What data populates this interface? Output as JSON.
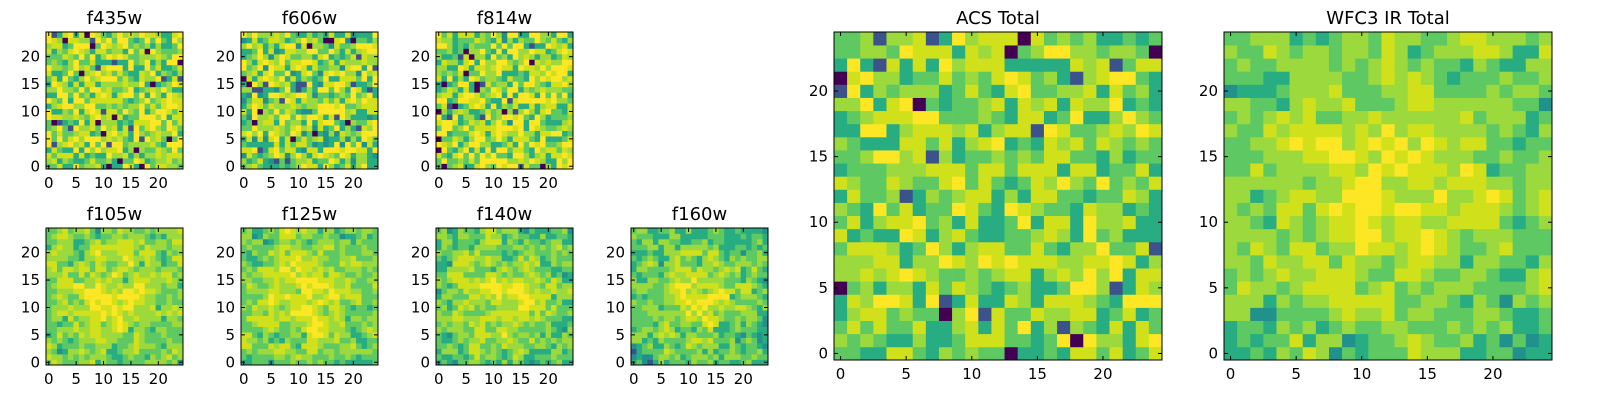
{
  "figure": {
    "palette": [
      "#440154",
      "#3b528b",
      "#21918c",
      "#27ad81",
      "#5ec962",
      "#9bd93c",
      "#d0e11c",
      "#fde725"
    ]
  },
  "chart_data": [
    {
      "type": "heatmap",
      "title": "f435w",
      "size": 25,
      "xticks": [
        0,
        5,
        10,
        15,
        20
      ],
      "yticks": [
        0,
        5,
        10,
        15,
        20
      ],
      "seed": 11,
      "smooth": 0,
      "center": 0.0,
      "bias": 0.7,
      "spread": 0.32
    },
    {
      "type": "heatmap",
      "title": "f606w",
      "size": 25,
      "xticks": [
        0,
        5,
        10,
        15,
        20
      ],
      "yticks": [
        0,
        5,
        10,
        15,
        20
      ],
      "seed": 23,
      "smooth": 0,
      "center": 0.0,
      "bias": 0.68,
      "spread": 0.34
    },
    {
      "type": "heatmap",
      "title": "f814w",
      "size": 25,
      "xticks": [
        0,
        5,
        10,
        15,
        20
      ],
      "yticks": [
        0,
        5,
        10,
        15,
        20
      ],
      "seed": 37,
      "smooth": 0,
      "center": 0.0,
      "bias": 0.7,
      "spread": 0.33
    },
    {
      "type": "heatmap",
      "title": "f105w",
      "size": 25,
      "xticks": [
        0,
        5,
        10,
        15,
        20
      ],
      "yticks": [
        0,
        5,
        10,
        15,
        20
      ],
      "seed": 41,
      "smooth": 1,
      "center": 0.25,
      "bias": 0.62,
      "spread": 0.3
    },
    {
      "type": "heatmap",
      "title": "f125w",
      "size": 25,
      "xticks": [
        0,
        5,
        10,
        15,
        20
      ],
      "yticks": [
        0,
        5,
        10,
        15,
        20
      ],
      "seed": 53,
      "smooth": 1,
      "center": 0.25,
      "bias": 0.62,
      "spread": 0.3
    },
    {
      "type": "heatmap",
      "title": "f140w",
      "size": 25,
      "xticks": [
        0,
        5,
        10,
        15,
        20
      ],
      "yticks": [
        0,
        5,
        10,
        15,
        20
      ],
      "seed": 67,
      "smooth": 1,
      "center": 0.25,
      "bias": 0.6,
      "spread": 0.3
    },
    {
      "type": "heatmap",
      "title": "f160w",
      "size": 25,
      "xticks": [
        0,
        5,
        10,
        15,
        20
      ],
      "yticks": [
        0,
        5,
        10,
        15,
        20
      ],
      "seed": 79,
      "smooth": 1,
      "center": 0.25,
      "bias": 0.55,
      "spread": 0.32
    },
    {
      "type": "heatmap",
      "title": "ACS Total",
      "size": 25,
      "xticks": [
        0,
        5,
        10,
        15,
        20
      ],
      "yticks": [
        0,
        5,
        10,
        15,
        20
      ],
      "seed": 97,
      "smooth": 0,
      "center": 0.05,
      "bias": 0.66,
      "spread": 0.26
    },
    {
      "type": "heatmap",
      "title": "WFC3 IR Total",
      "size": 25,
      "xticks": [
        0,
        5,
        10,
        15,
        20
      ],
      "yticks": [
        0,
        5,
        10,
        15,
        20
      ],
      "seed": 113,
      "smooth": 1,
      "center": 0.3,
      "bias": 0.58,
      "spread": 0.28
    }
  ]
}
